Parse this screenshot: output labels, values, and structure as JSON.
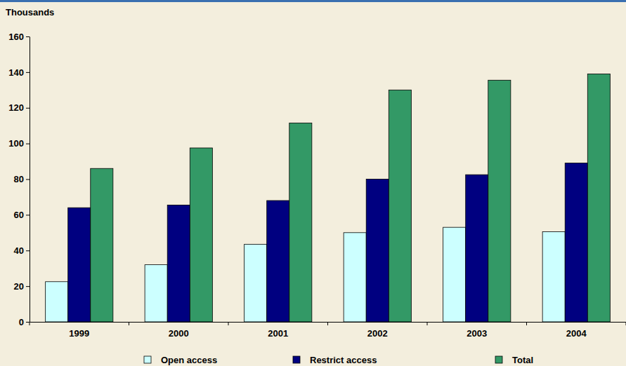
{
  "chart_data": {
    "type": "bar",
    "y_label": "Thousands",
    "categories": [
      "1999",
      "2000",
      "2001",
      "2002",
      "2003",
      "2004"
    ],
    "series": [
      {
        "name": "Open access",
        "color": "#ccffff",
        "values": [
          22.5,
          32,
          43.5,
          50,
          53,
          50.5
        ]
      },
      {
        "name": "Restrict access",
        "color": "#000080",
        "values": [
          64,
          65.5,
          68,
          80,
          82.5,
          89
        ]
      },
      {
        "name": "Total",
        "color": "#339966",
        "values": [
          86,
          97.5,
          111.5,
          130,
          135.5,
          139
        ]
      }
    ],
    "ylim": [
      0,
      160
    ],
    "yticks": [
      0,
      20,
      40,
      60,
      80,
      100,
      120,
      140,
      160
    ],
    "grid": false,
    "legend": "bottom"
  }
}
